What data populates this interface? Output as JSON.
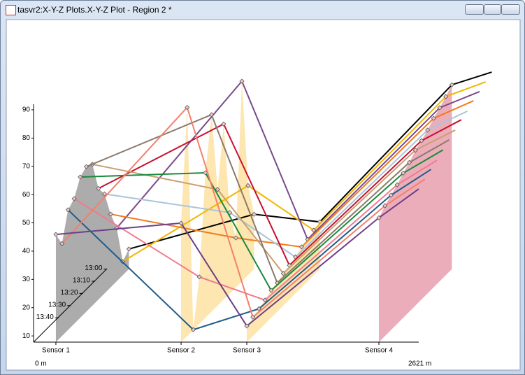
{
  "window": {
    "title": "tasvr2:X-Y-Z Plots.X-Y-Z Plot - Region 2 *"
  },
  "chart_data": {
    "type": "line",
    "x": [
      152,
      1004,
      1451,
      2350,
      2621
    ],
    "xlim": [
      0,
      2621
    ],
    "xlim_labels": [
      "0 m",
      "2621 m"
    ],
    "xticks": [
      {
        "value": 152,
        "label": "Sensor 1"
      },
      {
        "value": 1004,
        "label": "Sensor 2"
      },
      {
        "value": 1451,
        "label": "Sensor 3"
      },
      {
        "value": 2350,
        "label": "Sensor 4"
      }
    ],
    "ylim": [
      7.8,
      94
    ],
    "yticks": [
      10,
      20,
      30,
      40,
      50,
      60,
      70,
      80,
      90
    ],
    "zlim": [
      60,
      0
    ],
    "zticks": [
      {
        "value": 0,
        "label": "13:00"
      },
      {
        "value": 10,
        "label": "13:10"
      },
      {
        "value": 20,
        "label": "13:20"
      },
      {
        "value": 30,
        "label": "13:30"
      },
      {
        "value": 40,
        "label": "13:40"
      }
    ],
    "curtain_colors": [
      "#a3a3a3",
      "#fde3a6",
      "#fde3a6",
      "#eaa4b3"
    ],
    "series": [
      {
        "z": 60,
        "color": "#6e3f88",
        "values": [
          45.9,
          49.9,
          13.5,
          51.8,
          62.0
        ]
      },
      {
        "z": 55,
        "color": "#f4806c",
        "values": [
          40.5,
          88.7,
          14.5,
          53.9,
          63.3
        ]
      },
      {
        "z": 50,
        "color": "#1f5c8c",
        "values": [
          50.3,
          7.9,
          15.3,
          55.5,
          64.6
        ]
      },
      {
        "z": 45,
        "color": "#f27a8e",
        "values": [
          52.1,
          24.4,
          16.2,
          57.0,
          65.7
        ]
      },
      {
        "z": 40,
        "color": "#1a8a3a",
        "values": [
          57.6,
          59.1,
          17.5,
          59.0,
          67.2
        ]
      },
      {
        "z": 35,
        "color": "#8a7a6c",
        "values": [
          59.1,
          77.5,
          18.0,
          60.6,
          68.6
        ]
      },
      {
        "z": 30,
        "color": "#c9a06e",
        "values": [
          57.8,
          48.9,
          19.2,
          62.8,
          69.9
        ]
      },
      {
        "z": 25,
        "color": "#c8102e",
        "values": [
          47.1,
          69.9,
          19.9,
          64.0,
          71.4
        ]
      },
      {
        "z": 20,
        "color": "#a9c5d9",
        "values": [
          43.0,
          36.4,
          20.7,
          65.6,
          72.3
        ]
      },
      {
        "z": 15,
        "color": "#f37a1a",
        "values": [
          33.7,
          25.3,
          22.1,
          67.6,
          73.8
        ]
      },
      {
        "z": 10,
        "color": "#7a4a8a",
        "values": [
          26.6,
          78.6,
          22.6,
          69.2,
          74.9
        ]
      },
      {
        "z": 5,
        "color": "#f2b600",
        "values": [
          12.6,
          39.5,
          23.7,
          71.0,
          76.2
        ]
      },
      {
        "z": 0,
        "color": "#000000",
        "values": [
          14.9,
          27.2,
          24.5,
          73.0,
          77.5
        ]
      }
    ]
  }
}
